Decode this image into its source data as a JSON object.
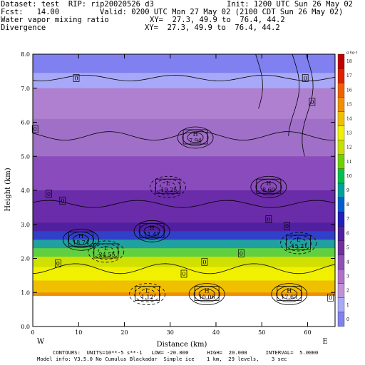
{
  "header": {
    "dataset": "Dataset: test  RIP: rip20020526 d3",
    "init": "Init: 1200 UTC Sun 26 May 02",
    "fcst": "Fcst:   14.00",
    "valid": "Valid: 0200 UTC Mon 27 May 02 (2100 CDT Sun 26 May 02)",
    "field1": "Water vapor mixing ratio",
    "xy1": "XY=  27.3, 49.9 to  76.4, 44.2",
    "field2": "Divergence",
    "xy2": "XY=  27.3, 49.9 to  76.4, 44.2"
  },
  "footer": {
    "line1": "CONTOURS:  UNITS=10**-5 s**-1   LOW= -20.000      HIGH=  20.000      INTERVAL=  5.0000",
    "line2": "Model info: V3.5.0 No Cumulus Blackadar  Simple ice    1 km,  29 levels,    3 sec"
  },
  "chart_data": {
    "type": "heatmap",
    "xlabel": "Distance (km)",
    "ylabel": "Height (km)",
    "xlim": [
      0,
      66
    ],
    "ylim": [
      0,
      8
    ],
    "xticks": [
      "0",
      "10",
      "20",
      "30",
      "40",
      "50",
      "60"
    ],
    "yticks": [
      "0.0",
      "1.0",
      "2.0",
      "3.0",
      "4.0",
      "5.0",
      "6.0",
      "7.0",
      "8.0"
    ],
    "endpoints": {
      "left": "W",
      "right": "E"
    },
    "colorbar": {
      "unit": "g kg-1",
      "labels": [
        "0",
        "1",
        "2",
        "3",
        "4",
        "5",
        "6",
        "7",
        "8",
        "9",
        "10",
        "11",
        "12",
        "13",
        "14",
        "15",
        "16",
        "17",
        "18"
      ],
      "colors": [
        "#8080f0",
        "#a8a8f8",
        "#c090d8",
        "#b070c8",
        "#9050b8",
        "#7030a0",
        "#5020a0",
        "#2020c0",
        "#0060d0",
        "#00a0a0",
        "#00c050",
        "#70d000",
        "#c8e000",
        "#f0f000",
        "#f0c000",
        "#f09000",
        "#f06000",
        "#e02000",
        "#c00000"
      ]
    },
    "moisture_layers": [
      {
        "top": 8.0,
        "color": "#8080f0"
      },
      {
        "top": 7.45,
        "color": "#a8a8f8"
      },
      {
        "top": 7.0,
        "color": "#b080d0"
      },
      {
        "top": 6.1,
        "color": "#a070c8"
      },
      {
        "top": 5.0,
        "color": "#8a4cbc"
      },
      {
        "top": 4.0,
        "color": "#6a2ca8"
      },
      {
        "top": 3.05,
        "color": "#5020a0"
      },
      {
        "top": 2.8,
        "color": "#3040c8"
      },
      {
        "top": 2.55,
        "color": "#20a0a0"
      },
      {
        "top": 2.3,
        "color": "#60d040"
      },
      {
        "top": 2.05,
        "color": "#d0e000"
      },
      {
        "top": 1.75,
        "color": "#f0f000"
      },
      {
        "top": 1.35,
        "color": "#f0c000"
      },
      {
        "top": 1.0,
        "color": "#f09000"
      }
    ],
    "terrain_top_km": 0.9,
    "extrema": [
      {
        "kind": "H",
        "value": "7.94",
        "x": 35.5,
        "y": 5.55
      },
      {
        "kind": "L",
        "value": "-19.25",
        "x": 29.5,
        "y": 4.1
      },
      {
        "kind": "H",
        "value": "8.60",
        "x": 51.5,
        "y": 4.1
      },
      {
        "kind": "H",
        "value": "18.74",
        "x": 10.5,
        "y": 2.55
      },
      {
        "kind": "H",
        "value": "11.41",
        "x": 26.0,
        "y": 2.8
      },
      {
        "kind": "L",
        "value": "-24.55",
        "x": 16.0,
        "y": 2.2
      },
      {
        "kind": "L",
        "value": "-15.21",
        "x": 58.0,
        "y": 2.45
      },
      {
        "kind": "L",
        "value": "1.12",
        "x": 25.0,
        "y": 0.95
      },
      {
        "kind": "H",
        "value": "10.06",
        "x": 38.0,
        "y": 0.95
      },
      {
        "kind": "H",
        "value": "17.63",
        "x": 56.0,
        "y": 0.95
      }
    ],
    "zero_labels": [
      {
        "x": 9.5,
        "y": 7.3
      },
      {
        "x": 59.5,
        "y": 7.3
      },
      {
        "x": 61.0,
        "y": 6.6
      },
      {
        "x": 0.5,
        "y": 5.8
      },
      {
        "x": 3.5,
        "y": 3.9
      },
      {
        "x": 6.5,
        "y": 3.7
      },
      {
        "x": 51.5,
        "y": 3.15
      },
      {
        "x": 55.5,
        "y": 2.95
      },
      {
        "x": 45.5,
        "y": 2.15
      },
      {
        "x": 37.5,
        "y": 1.9
      },
      {
        "x": 33.0,
        "y": 1.55
      },
      {
        "x": 5.5,
        "y": 1.85
      },
      {
        "x": 65.0,
        "y": 0.85
      }
    ]
  }
}
